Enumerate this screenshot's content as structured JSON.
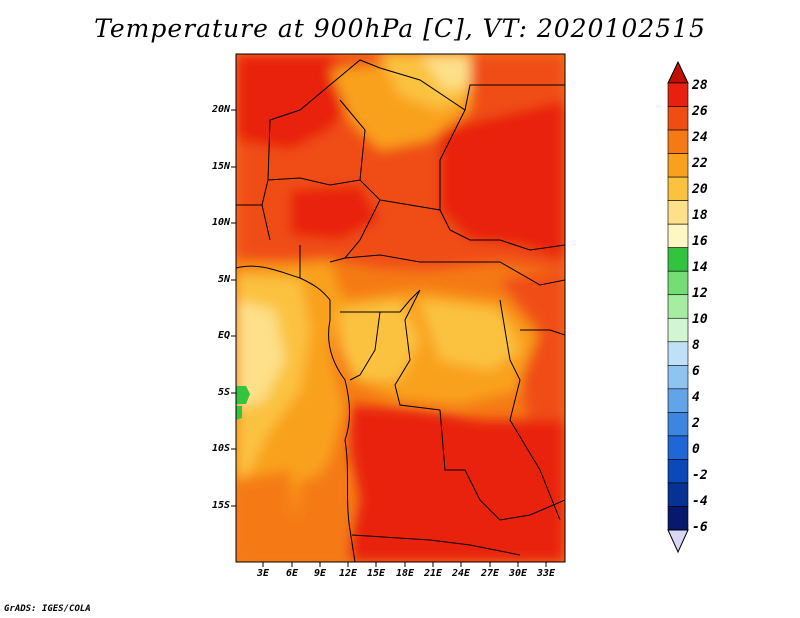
{
  "title": "Temperature at 900hPa [C], VT: 2020102515",
  "credit": "GrADS: IGES/COLA",
  "y_axis_labels": [
    "20N",
    "15N",
    "10N",
    "5N",
    "EQ",
    "5S",
    "10S",
    "15S"
  ],
  "x_axis_labels": [
    "3E",
    "6E",
    "9E",
    "12E",
    "15E",
    "18E",
    "21E",
    "24E",
    "27E",
    "30E",
    "33E"
  ],
  "colorbar": {
    "labels": [
      "28",
      "26",
      "24",
      "22",
      "20",
      "18",
      "16",
      "14",
      "12",
      "10",
      "8",
      "6",
      "4",
      "2",
      "0",
      "-2",
      "-4",
      "-6"
    ],
    "colors": [
      "#e8200f",
      "#f04d12",
      "#f57a16",
      "#f9a11e",
      "#fbc23f",
      "#fde089",
      "#fdf7c3",
      "#33c43f",
      "#74dd74",
      "#a6eca3",
      "#d2f6d2",
      "#bfe0f6",
      "#8fc3f0",
      "#62a4e8",
      "#3d86e0",
      "#1f66d6",
      "#0c49b8",
      "#083194",
      "#08186d"
    ],
    "arrow_top_color": "#c01008",
    "arrow_bottom_color": "#d8d8f5"
  }
}
